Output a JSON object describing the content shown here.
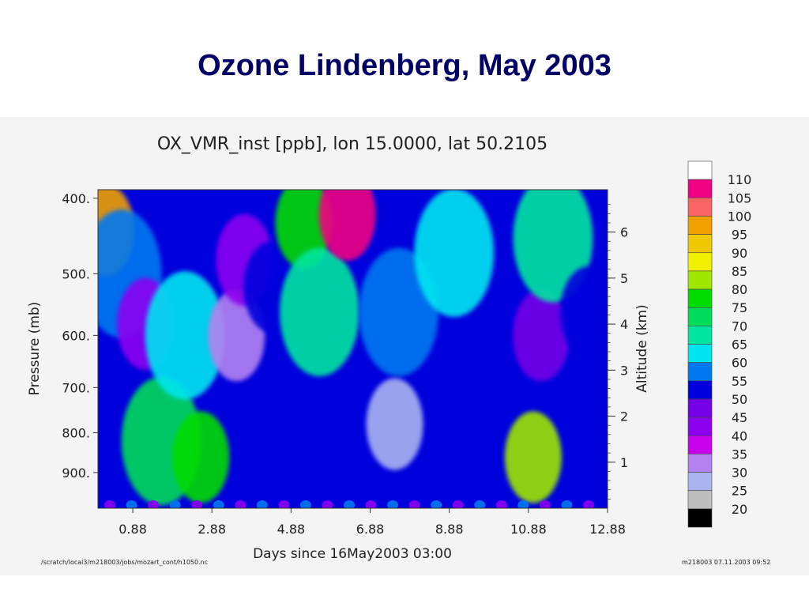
{
  "slide": {
    "title": "Ozone Lindenberg, May 2003"
  },
  "colors": {
    "title": "#000066",
    "panel_bg": "#f4f4f4",
    "plot_bg": "#0000dd"
  },
  "chart_data": {
    "type": "heatmap",
    "title": "OX_VMR_inst [ppb], lon 15.0000, lat 50.2105",
    "xlabel": "Days since 16May2003 03:00",
    "ylabel": "Pressure (mb)",
    "y2label": "Altitude (km)",
    "xlim": [
      0.0,
      12.88
    ],
    "x_ticks": [
      0.88,
      2.88,
      4.88,
      6.88,
      8.88,
      10.88,
      12.88
    ],
    "x_tick_labels": [
      "0.88",
      "2.88",
      "4.88",
      "6.88",
      "8.88",
      "10.88",
      "12.88"
    ],
    "ylim": [
      1000,
      390
    ],
    "y_ticks": [
      400,
      500,
      600,
      700,
      800,
      900
    ],
    "y_tick_labels": [
      "400.",
      "500.",
      "600.",
      "700.",
      "800.",
      "900."
    ],
    "y2_ticks": [
      1,
      2,
      3,
      4,
      5,
      6
    ],
    "y2_tick_labels": [
      "1",
      "2",
      "3",
      "4",
      "5",
      "6"
    ],
    "colorbar": {
      "levels": [
        20,
        25,
        30,
        35,
        40,
        45,
        50,
        55,
        60,
        65,
        70,
        75,
        80,
        85,
        90,
        95,
        100,
        105,
        110
      ],
      "labels": [
        "20",
        "25",
        "30",
        "35",
        "40",
        "45",
        "50",
        "55",
        "60",
        "65",
        "70",
        "75",
        "80",
        "85",
        "90",
        "95",
        "100",
        "105",
        "110"
      ],
      "colors": [
        "#000000",
        "#bebebe",
        "#aab4f0",
        "#b482f0",
        "#c800f0",
        "#8c00f0",
        "#7300e6",
        "#0000dd",
        "#0078f0",
        "#00e6f0",
        "#00e6a0",
        "#00dc5a",
        "#00dc00",
        "#a0e600",
        "#f0f000",
        "#f0c800",
        "#f0a000",
        "#fa6464",
        "#f00082",
        "#ffffff"
      ]
    },
    "features": [
      {
        "x": 0.2,
        "y": 440,
        "value": 95
      },
      {
        "x": 0.6,
        "y": 500,
        "value": 55
      },
      {
        "x": 1.2,
        "y": 580,
        "value": 40
      },
      {
        "x": 1.6,
        "y": 820,
        "value": 70
      },
      {
        "x": 2.2,
        "y": 600,
        "value": 60
      },
      {
        "x": 2.6,
        "y": 860,
        "value": 75
      },
      {
        "x": 3.5,
        "y": 600,
        "value": 30
      },
      {
        "x": 3.7,
        "y": 480,
        "value": 40
      },
      {
        "x": 4.4,
        "y": 520,
        "value": 50
      },
      {
        "x": 5.2,
        "y": 430,
        "value": 75
      },
      {
        "x": 5.6,
        "y": 560,
        "value": 65
      },
      {
        "x": 6.3,
        "y": 420,
        "value": 105
      },
      {
        "x": 7.6,
        "y": 560,
        "value": 55
      },
      {
        "x": 7.5,
        "y": 780,
        "value": 25
      },
      {
        "x": 9.0,
        "y": 470,
        "value": 60
      },
      {
        "x": 11.2,
        "y": 600,
        "value": 45
      },
      {
        "x": 11.5,
        "y": 450,
        "value": 65
      },
      {
        "x": 11.0,
        "y": 860,
        "value": 80
      },
      {
        "x": 12.4,
        "y": 560,
        "value": 50
      }
    ]
  },
  "footer": {
    "left": "/scratch/local3/m218003/jobs/mozart_cont/h1050.nc",
    "right": "m218003 07.11.2003 09:52"
  }
}
